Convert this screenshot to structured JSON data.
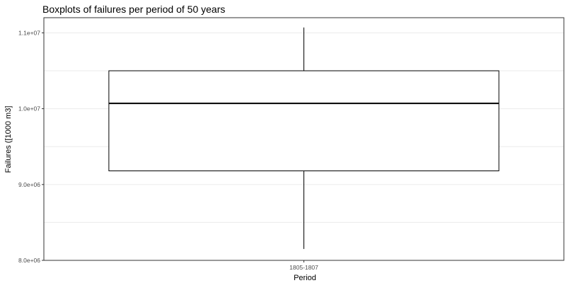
{
  "chart_data": {
    "type": "boxplot",
    "title": "Boxplots of failures per period of 50 years",
    "xlabel": "Period",
    "ylabel": "Failures ([1000 m3]",
    "categories": [
      "1805-1807"
    ],
    "boxes": [
      {
        "category": "1805-1807",
        "whisker_low": 8150000,
        "q1": 9180000,
        "median": 10070000,
        "q3": 10500000,
        "whisker_high": 11070000
      }
    ],
    "ylim": [
      8000000,
      11200000
    ],
    "y_ticks": [
      8000000,
      9000000,
      10000000,
      11000000
    ],
    "y_tick_labels": [
      "8.0e+06",
      "9.0e+06",
      "1.0e+07",
      "1.1e+07"
    ],
    "grid": true,
    "colors": {
      "box_fill": "#ffffff",
      "box_stroke": "#000000",
      "grid": "#ebebeb",
      "panel_border": "#333333"
    }
  }
}
